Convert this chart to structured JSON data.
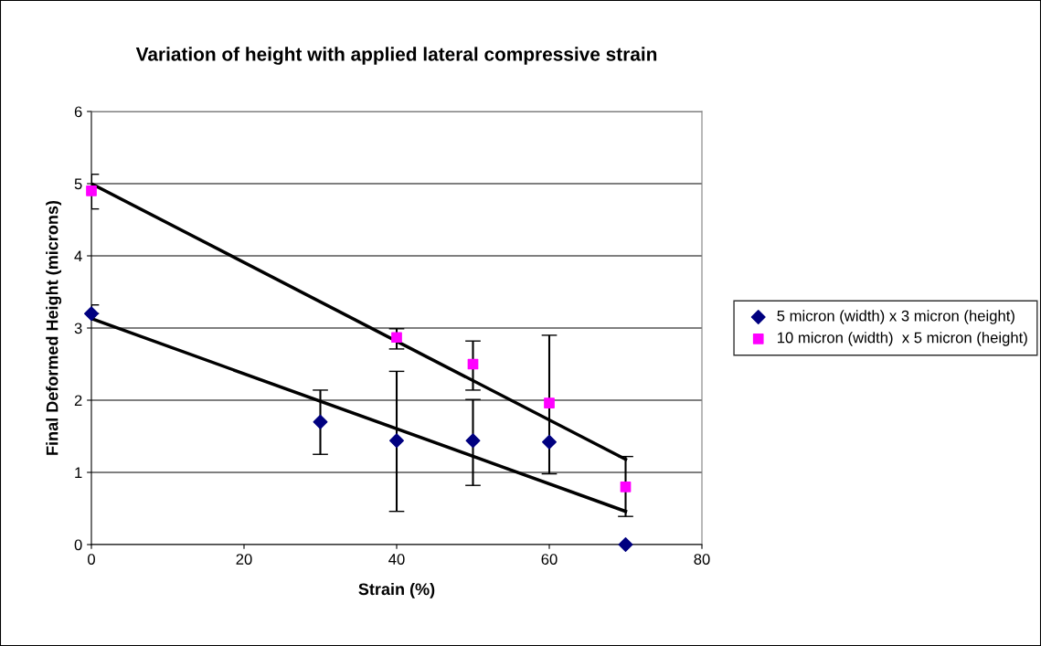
{
  "chart_data": {
    "type": "scatter",
    "title": "Variation of height with applied lateral compressive strain",
    "xlabel": "Strain (%)",
    "ylabel": "Final Deformed Height (microns)",
    "xlim": [
      0,
      80
    ],
    "xticks": [
      0,
      20,
      40,
      60,
      80
    ],
    "ylim": [
      0,
      6
    ],
    "yticks": [
      0,
      1,
      2,
      3,
      4,
      5,
      6
    ],
    "grid": "y",
    "legend": "right",
    "series": [
      {
        "name": "5 micron (width) x 3 micron (height)",
        "color": "#000080",
        "marker": "diamond",
        "x": [
          0,
          30,
          40,
          50,
          60,
          70
        ],
        "values": [
          3.2,
          1.7,
          1.44,
          1.44,
          1.42,
          0.0
        ],
        "errors": [
          [
            3.2,
            3.32
          ],
          [
            1.25,
            2.14
          ],
          [
            0.46,
            2.4
          ],
          [
            0.82,
            2.01
          ],
          null,
          null
        ]
      },
      {
        "name": "10 micron (width)  x 5 micron (height)",
        "color": "#ff00ff",
        "marker": "square",
        "x": [
          0,
          40,
          50,
          60,
          70
        ],
        "values": [
          4.9,
          2.87,
          2.5,
          1.96,
          0.8
        ],
        "errors": [
          [
            4.65,
            5.13
          ],
          [
            2.71,
            2.99
          ],
          [
            2.14,
            2.82
          ],
          [
            0.98,
            2.9
          ],
          [
            0.39,
            1.22
          ]
        ]
      },
      {
        "type": "line",
        "color": "#000000",
        "marker": "none",
        "x": [
          0,
          70
        ],
        "values": [
          5.0,
          1.18
        ]
      },
      {
        "type": "line",
        "color": "#000000",
        "marker": "none",
        "x": [
          0,
          70
        ],
        "values": [
          3.13,
          0.46
        ]
      }
    ]
  }
}
